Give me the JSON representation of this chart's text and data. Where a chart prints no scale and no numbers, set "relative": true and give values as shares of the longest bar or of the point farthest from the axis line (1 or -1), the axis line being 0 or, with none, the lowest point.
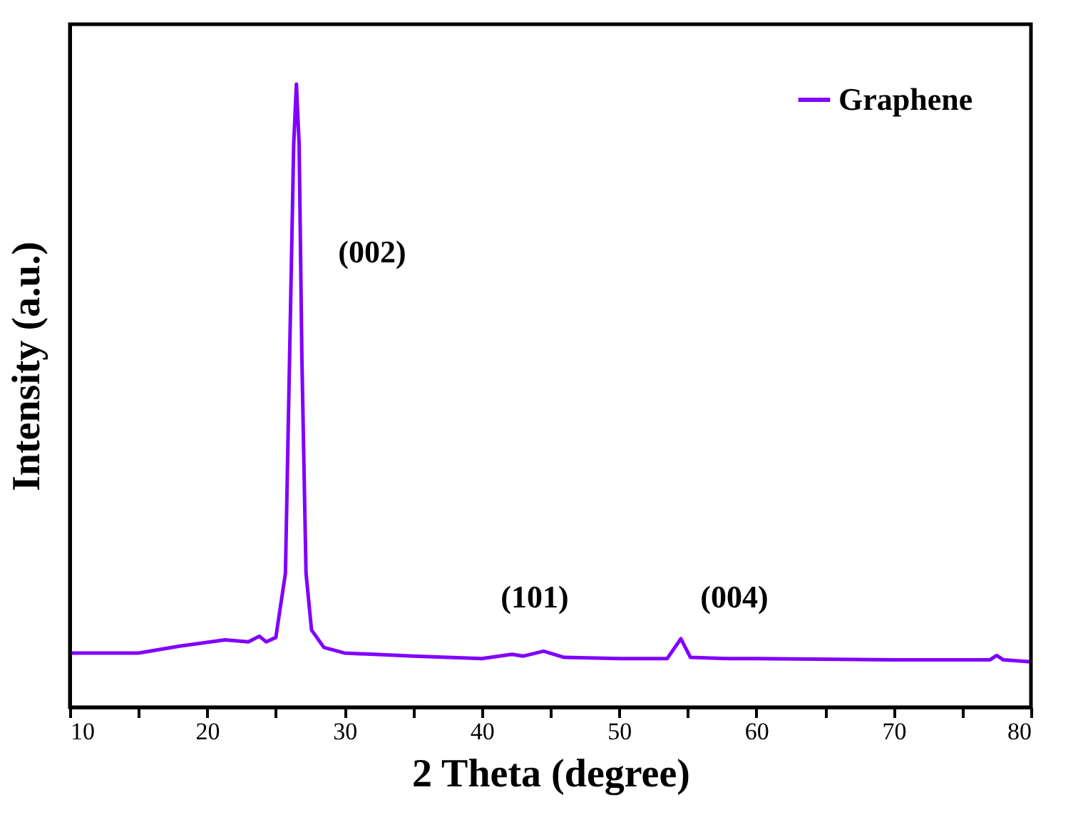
{
  "chart_data": {
    "type": "line",
    "relative": true,
    "xlabel": "2 Theta (degree)",
    "ylabel": "Intensity (a.u.)",
    "x": [
      10,
      15,
      18,
      21.3,
      23,
      23.8,
      24.3,
      25,
      25.7,
      26.0,
      26.3,
      26.5,
      26.7,
      26.9,
      27.2,
      27.6,
      28.5,
      30,
      35,
      40,
      42.2,
      43,
      44.5,
      46,
      50,
      53.5,
      54.5,
      55.2,
      58,
      60,
      70,
      77,
      77.5,
      78,
      80
    ],
    "series": [
      {
        "name": "Graphene",
        "color": "#8000ff",
        "values": [
          0.087,
          0.087,
          0.098,
          0.108,
          0.105,
          0.114,
          0.105,
          0.112,
          0.215,
          0.558,
          0.902,
          1,
          0.902,
          0.558,
          0.215,
          0.124,
          0.096,
          0.087,
          0.082,
          0.078,
          0.085,
          0.082,
          0.09,
          0.08,
          0.078,
          0.078,
          0.11,
          0.08,
          0.078,
          0.078,
          0.076,
          0.076,
          0.083,
          0.076,
          0.073
        ]
      }
    ],
    "xlim": [
      10,
      80
    ],
    "xticks": [
      10,
      {
        "value": 15,
        "label": null
      },
      20,
      {
        "value": 25,
        "label": null
      },
      30,
      {
        "value": 35,
        "label": null
      },
      40,
      {
        "value": 45,
        "label": null
      },
      50,
      {
        "value": 55,
        "label": null
      },
      60,
      {
        "value": 65,
        "label": null
      },
      70,
      {
        "value": 75,
        "label": null
      },
      80
    ],
    "annotations": [
      "(002)",
      "(101)",
      "(004)"
    ],
    "legend": "top right",
    "grid": false
  }
}
